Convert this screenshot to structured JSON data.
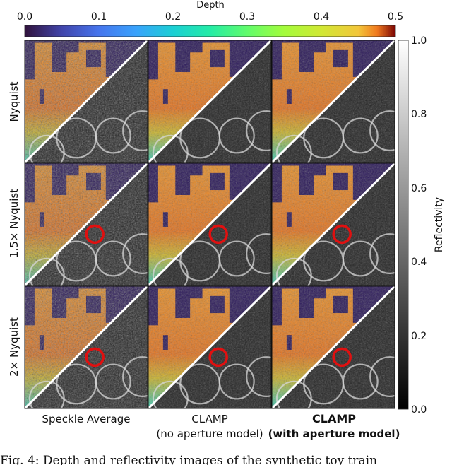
{
  "figure": {
    "depth_colorbar": {
      "label": "Depth",
      "ticks": [
        "0.0",
        "0.1",
        "0.2",
        "0.3",
        "0.4",
        "0.5"
      ]
    },
    "reflectivity_colorbar": {
      "label": "Reflectivity",
      "ticks": [
        "1.0",
        "0.8",
        "0.6",
        "0.4",
        "0.2",
        "0.0"
      ]
    },
    "rows": [
      "Nyquist",
      "1.5× Nyquist",
      "2× Nyquist"
    ],
    "columns": [
      {
        "line1": "Speckle Average",
        "line2": ""
      },
      {
        "line1": "CLAMP",
        "line2": "(no aperture model)"
      },
      {
        "line1": "CLAMP",
        "line2": "(with aperture model)"
      }
    ],
    "colors": {
      "background": "#2d1a5e",
      "depth_orange": "#f48a2a",
      "highlight_circle": "#e01010"
    }
  },
  "caption": {
    "text": "Fig. 4: Depth and reflectivity images of the synthetic toy train"
  }
}
